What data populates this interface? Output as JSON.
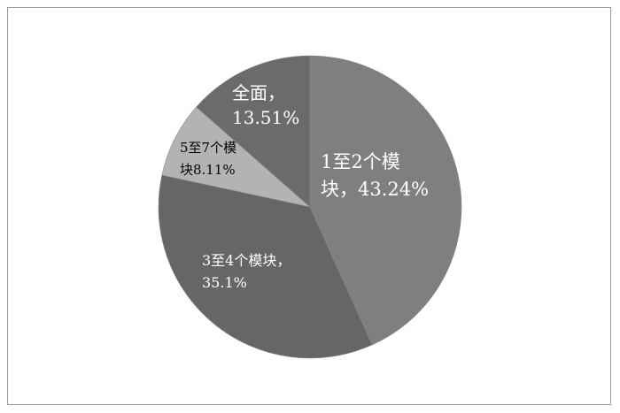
{
  "chart_data": {
    "type": "pie",
    "start_angle": "12 o'clock",
    "direction": "clockwise",
    "slices": [
      {
        "category": "1至2个模块",
        "value": 43.24,
        "label_lines": [
          "1至2个模",
          "块，43.24%"
        ],
        "color": "#7f7f7f",
        "label_color": "#ffffff"
      },
      {
        "category": "3至4个模块",
        "value": 35.1,
        "label_lines": [
          "3至4个模块，",
          "35.1%"
        ],
        "color": "#666666",
        "label_color": "#ffffff"
      },
      {
        "category": "5至7个模块",
        "value": 8.11,
        "label_lines": [
          "5至7个模",
          "块8.11%"
        ],
        "color": "#b3b3b3",
        "label_color": "#000000"
      },
      {
        "category": "全面",
        "value": 13.51,
        "label_lines": [
          "全面，",
          "13.51%"
        ],
        "color": "#6b6b6b",
        "label_color": "#ffffff"
      }
    ]
  }
}
